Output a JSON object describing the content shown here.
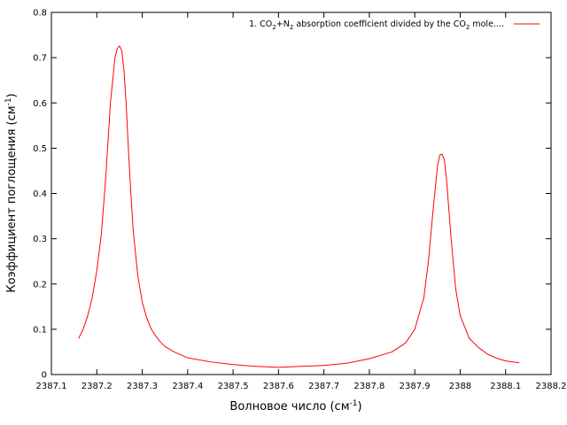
{
  "chart_data": {
    "type": "line",
    "title": "",
    "xlabel": "Волновое число (см",
    "xlabel_sup": "-1",
    "xlabel_suffix": ")",
    "ylabel": "Коэффициент поглощения (см",
    "ylabel_sup": "-1",
    "ylabel_suffix": ")",
    "xlim": [
      2387.1,
      2388.2
    ],
    "ylim": [
      0,
      0.8
    ],
    "xticks": [
      2387.1,
      2387.2,
      2387.3,
      2387.4,
      2387.5,
      2387.6,
      2387.7,
      2387.8,
      2387.9,
      2388,
      2388.1,
      2388.2
    ],
    "xtick_labels": [
      "2387.1",
      "2387.2",
      "2387.3",
      "2387.4",
      "2387.5",
      "2387.6",
      "2387.7",
      "2387.8",
      "2387.9",
      "2388",
      "2388.1",
      "2388.2"
    ],
    "yticks": [
      0,
      0.1,
      0.2,
      0.3,
      0.4,
      0.5,
      0.6,
      0.7,
      0.8
    ],
    "ytick_labels": [
      "0",
      "0.1",
      "0.2",
      "0.3",
      "0.4",
      "0.5",
      "0.6",
      "0.7",
      "0.8"
    ],
    "grid": false,
    "legend_position": "top-right",
    "series": [
      {
        "name": "1. CO2+N2 absorption coefficient divided by the CO2 mole....",
        "color": "#ff0000",
        "x": [
          2387.16,
          2387.17,
          2387.18,
          2387.19,
          2387.2,
          2387.21,
          2387.22,
          2387.23,
          2387.24,
          2387.245,
          2387.25,
          2387.255,
          2387.26,
          2387.265,
          2387.27,
          2387.275,
          2387.28,
          2387.29,
          2387.3,
          2387.31,
          2387.32,
          2387.33,
          2387.34,
          2387.35,
          2387.37,
          2387.4,
          2387.45,
          2387.5,
          2387.55,
          2387.6,
          2387.65,
          2387.7,
          2387.75,
          2387.8,
          2387.85,
          2387.88,
          2387.9,
          2387.92,
          2387.93,
          2387.94,
          2387.95,
          2387.955,
          2387.96,
          2387.965,
          2387.97,
          2387.98,
          2387.99,
          2388,
          2388.02,
          2388.04,
          2388.06,
          2388.08,
          2388.1,
          2388.13
        ],
        "y": [
          0.08,
          0.1,
          0.13,
          0.17,
          0.23,
          0.31,
          0.44,
          0.6,
          0.7,
          0.72,
          0.726,
          0.715,
          0.67,
          0.59,
          0.49,
          0.4,
          0.32,
          0.22,
          0.16,
          0.125,
          0.1,
          0.085,
          0.072,
          0.062,
          0.05,
          0.037,
          0.028,
          0.022,
          0.018,
          0.016,
          0.018,
          0.02,
          0.025,
          0.035,
          0.05,
          0.07,
          0.1,
          0.17,
          0.25,
          0.36,
          0.46,
          0.485,
          0.487,
          0.475,
          0.43,
          0.3,
          0.19,
          0.13,
          0.08,
          0.06,
          0.045,
          0.036,
          0.03,
          0.026
        ]
      }
    ]
  },
  "legend": {
    "prefix": "1. CO",
    "sub1": "2",
    "mid": "+N",
    "sub2": "2",
    "middle_text": " absorption coefficient divided by the CO",
    "sub3": "2",
    "suffix": " mole...."
  }
}
